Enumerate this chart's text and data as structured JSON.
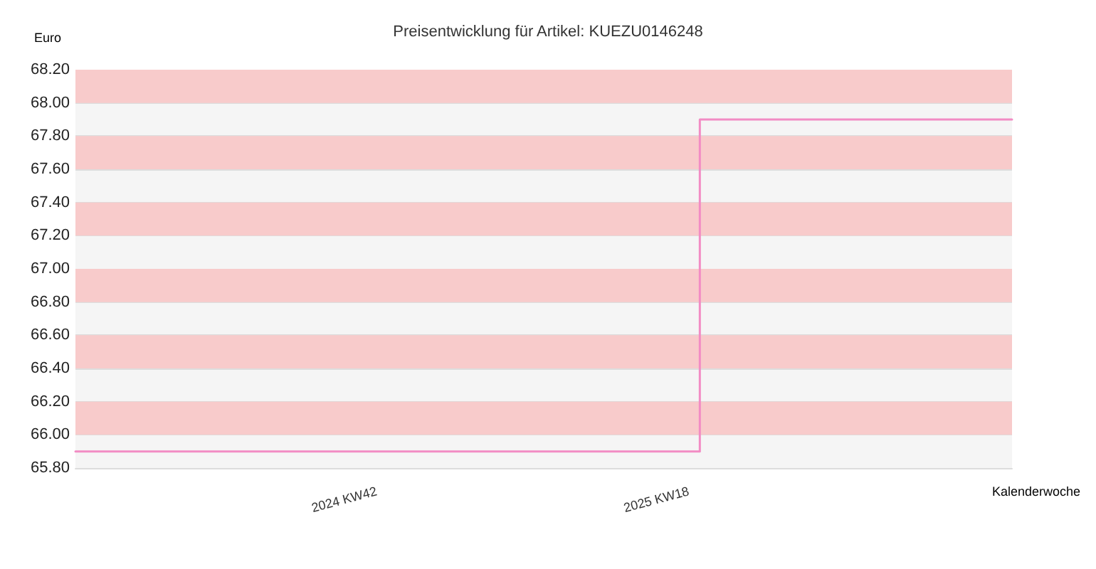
{
  "chart_data": {
    "type": "step",
    "title": "Preisentwicklung für Artikel: KUEZU0146248",
    "xlabel": "Kalenderwoche",
    "ylabel": "Euro",
    "categories": [
      null,
      null,
      null,
      null,
      null,
      null,
      null,
      null,
      null,
      null,
      null,
      null,
      null,
      null,
      null,
      null,
      null,
      null,
      null,
      null,
      null,
      null,
      null,
      null,
      null,
      null,
      null,
      "2024 KW42",
      null,
      null,
      null,
      null,
      null,
      null,
      null,
      null,
      null,
      null,
      null,
      null,
      null,
      null,
      null,
      null,
      null,
      null,
      null,
      null,
      null,
      null,
      null,
      null,
      null,
      null,
      null,
      "2025 KW18",
      null,
      null,
      null,
      null,
      null,
      null,
      null,
      null,
      null,
      null,
      null,
      null,
      null,
      null,
      null,
      null,
      null,
      null,
      null,
      null,
      null,
      null,
      null,
      null,
      null,
      null,
      null,
      null,
      null
    ],
    "series": [
      {
        "color": "#f28cc4",
        "values": [
          65.9,
          65.9,
          65.9,
          65.9,
          65.9,
          65.9,
          65.9,
          65.9,
          65.9,
          65.9,
          65.9,
          65.9,
          65.9,
          65.9,
          65.9,
          65.9,
          65.9,
          65.9,
          65.9,
          65.9,
          65.9,
          65.9,
          65.9,
          65.9,
          65.9,
          65.9,
          65.9,
          65.9,
          65.9,
          65.9,
          65.9,
          65.9,
          65.9,
          65.9,
          65.9,
          65.9,
          65.9,
          65.9,
          65.9,
          65.9,
          65.9,
          65.9,
          65.9,
          65.9,
          65.9,
          65.9,
          65.9,
          65.9,
          65.9,
          65.9,
          65.9,
          65.9,
          65.9,
          65.9,
          65.9,
          65.9,
          67.9,
          67.9,
          67.9,
          67.9,
          67.9,
          67.9,
          67.9,
          67.9,
          67.9,
          67.9,
          67.9,
          67.9,
          67.9,
          67.9,
          67.9,
          67.9,
          67.9,
          67.9,
          67.9,
          67.9,
          67.9,
          67.9,
          67.9,
          67.9,
          67.9,
          67.9,
          67.9,
          67.9,
          67.9
        ]
      }
    ],
    "ylim": [
      65.8,
      68.2
    ],
    "yticks": [
      {
        "value": 65.8,
        "label": "65.80"
      },
      {
        "value": 66.0,
        "label": "66.00"
      },
      {
        "value": 66.2,
        "label": "66.20"
      },
      {
        "value": 66.4,
        "label": "66.40"
      },
      {
        "value": 66.6,
        "label": "66.60"
      },
      {
        "value": 66.8,
        "label": "66.80"
      },
      {
        "value": 67.0,
        "label": "67.00"
      },
      {
        "value": 67.2,
        "label": "67.20"
      },
      {
        "value": 67.4,
        "label": "67.40"
      },
      {
        "value": 67.6,
        "label": "67.60"
      },
      {
        "value": 67.8,
        "label": "67.80"
      },
      {
        "value": 68.0,
        "label": "68.00"
      },
      {
        "value": 68.2,
        "label": "68.20"
      }
    ],
    "bands": [
      {
        "axis": "y",
        "from": 66.0,
        "to": 66.2,
        "color": "#f8cbcb"
      },
      {
        "axis": "y",
        "from": 66.4,
        "to": 66.6,
        "color": "#f8cbcb"
      },
      {
        "axis": "y",
        "from": 66.8,
        "to": 67.0,
        "color": "#f8cbcb"
      },
      {
        "axis": "y",
        "from": 67.2,
        "to": 67.4,
        "color": "#f8cbcb"
      },
      {
        "axis": "y",
        "from": 67.6,
        "to": 67.8,
        "color": "#f8cbcb"
      },
      {
        "axis": "y",
        "from": 68.0,
        "to": 68.2,
        "color": "#f8cbcb"
      }
    ],
    "grid": "y",
    "marker": "none",
    "line_style": "solid"
  }
}
